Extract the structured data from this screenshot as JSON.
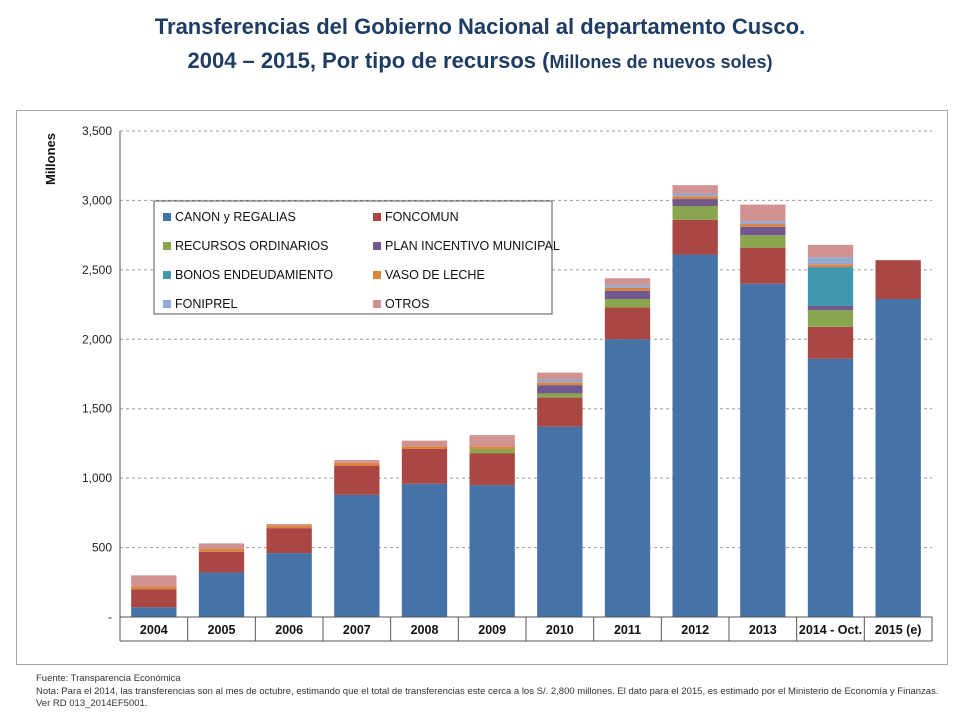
{
  "title": {
    "line1": "Transferencias del Gobierno Nacional al departamento Cusco.",
    "line2_main": "2004 – 2015, Por tipo de recursos (",
    "line2_small": "Millones de nuevos soles)"
  },
  "notes": {
    "source": "Fuente: Transparencia Económica",
    "note": "Nota: Para el 2014, las transferencias son al mes de octubre, estimando que el total de transferencias este cerca a los S/. 2,800 millones. El dato para el 2015, es estimado por el Ministerio de Economía y Finanzas. Ver RD 013_2014EF5001."
  },
  "chart_data": {
    "type": "bar",
    "stacked": true,
    "ylabel": "Millones",
    "ylim": [
      0,
      3500
    ],
    "yticks": [
      0,
      500,
      1000,
      1500,
      2000,
      2500,
      3000,
      3500
    ],
    "ytick_labels": [
      "-",
      "500",
      "1,000",
      "1,500",
      "2,000",
      "2,500",
      "3,000",
      "3,500"
    ],
    "grid": true,
    "legend_position": "upper-left inside",
    "categories": [
      "2004",
      "2005",
      "2006",
      "2007",
      "2008",
      "2009",
      "2010",
      "2011",
      "2012",
      "2013",
      "2014 - Oct.",
      "2015 (e)"
    ],
    "series": [
      {
        "name": "CANON y REGALIAS",
        "color": "#4572a7",
        "values": [
          70,
          320,
          460,
          880,
          960,
          950,
          1370,
          2000,
          2610,
          2400,
          1860,
          2290
        ]
      },
      {
        "name": "FONCOMUN",
        "color": "#aa4643",
        "values": [
          130,
          150,
          180,
          210,
          250,
          230,
          210,
          230,
          250,
          260,
          230,
          280
        ]
      },
      {
        "name": "RECURSOS ORDINARIOS",
        "color": "#89a54e",
        "values": [
          0,
          0,
          0,
          0,
          0,
          30,
          30,
          60,
          100,
          90,
          120,
          0
        ]
      },
      {
        "name": "PLAN INCENTIVO MUNICIPAL",
        "color": "#71588f",
        "values": [
          0,
          0,
          0,
          0,
          0,
          0,
          60,
          60,
          50,
          60,
          30,
          0
        ]
      },
      {
        "name": "BONOS ENDEUDAMIENTO",
        "color": "#4198af",
        "values": [
          0,
          0,
          0,
          0,
          0,
          0,
          0,
          0,
          0,
          0,
          280,
          0
        ]
      },
      {
        "name": "VASO DE LECHE",
        "color": "#db843d",
        "values": [
          20,
          20,
          20,
          20,
          20,
          20,
          20,
          20,
          20,
          20,
          20,
          0
        ]
      },
      {
        "name": "FONIPREL",
        "color": "#93a9cf",
        "values": [
          0,
          0,
          0,
          0,
          0,
          0,
          20,
          20,
          20,
          20,
          50,
          0
        ]
      },
      {
        "name": "OTROS",
        "color": "#d19392",
        "values": [
          80,
          40,
          10,
          20,
          40,
          80,
          50,
          50,
          60,
          120,
          90,
          0
        ]
      }
    ]
  }
}
